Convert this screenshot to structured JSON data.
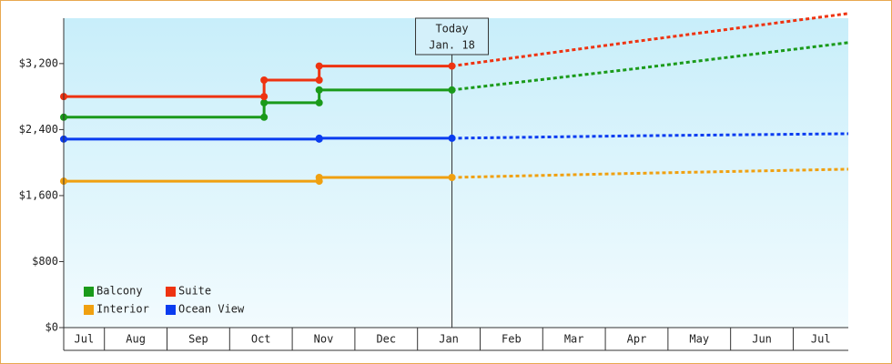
{
  "chart_data": {
    "type": "step-line",
    "xlim": [
      0.35,
      12.88
    ],
    "xticks": [
      {
        "value": 0,
        "label": "Jul"
      },
      {
        "value": 1,
        "label": "Aug"
      },
      {
        "value": 2,
        "label": "Sep"
      },
      {
        "value": 3,
        "label": "Oct"
      },
      {
        "value": 4,
        "label": "Nov"
      },
      {
        "value": 5,
        "label": "Dec"
      },
      {
        "value": 6,
        "label": "Jan"
      },
      {
        "value": 7,
        "label": "Feb"
      },
      {
        "value": 8,
        "label": "Mar"
      },
      {
        "value": 9,
        "label": "Apr"
      },
      {
        "value": 10,
        "label": "May"
      },
      {
        "value": 11,
        "label": "Jun"
      },
      {
        "value": 12,
        "label": "Jul"
      }
    ],
    "ylim": [
      0,
      3750
    ],
    "yticks": [
      {
        "value": 0,
        "label": "$0"
      },
      {
        "value": 800,
        "label": "$800"
      },
      {
        "value": 1600,
        "label": "$1,600"
      },
      {
        "value": 2400,
        "label": "$2,400"
      },
      {
        "value": 3200,
        "label": "$3,200"
      }
    ],
    "today": {
      "x": 6.55,
      "label": "Today",
      "date": "Jan. 18"
    },
    "legend": "bottom-left",
    "series": [
      {
        "name": "Balcony",
        "color": "#1a9a1a",
        "x": [
          0.35,
          3.55,
          3.55,
          4.43,
          4.43,
          6.55
        ],
        "values": [
          2550,
          2550,
          2725,
          2725,
          2880,
          2880
        ],
        "forecast": {
          "x": [
            6.55,
            9.5,
            12.88
          ],
          "values": [
            2880,
            3140,
            3454
          ]
        }
      },
      {
        "name": "Suite",
        "color": "#ee3311",
        "x": [
          0.35,
          3.55,
          3.55,
          4.43,
          4.43,
          6.55
        ],
        "values": [
          2800,
          2800,
          3000,
          3000,
          3170,
          3170
        ],
        "forecast": {
          "x": [
            6.55,
            9.5,
            12.88
          ],
          "values": [
            3170,
            3470,
            3807
          ]
        }
      },
      {
        "name": "Interior",
        "color": "#f0a010",
        "x": [
          0.35,
          4.43,
          4.43,
          6.55
        ],
        "values": [
          1775,
          1775,
          1820,
          1820
        ],
        "forecast": {
          "x": [
            6.55,
            9.5,
            12.88
          ],
          "values": [
            1820,
            1870,
            1920
          ]
        }
      },
      {
        "name": "Ocean View",
        "color": "#0a3cf0",
        "x": [
          0.35,
          4.43,
          4.43,
          6.55
        ],
        "values": [
          2285,
          2285,
          2295,
          2295
        ],
        "forecast": {
          "x": [
            6.55,
            9.5,
            12.88
          ],
          "values": [
            2295,
            2325,
            2350
          ]
        }
      }
    ]
  }
}
